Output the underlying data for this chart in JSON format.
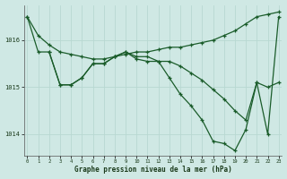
{
  "background_color": "#cfe8e4",
  "grid_color": "#b8d8d2",
  "line_color": "#1a5c2a",
  "marker_color": "#1a5c2a",
  "xlabel": "Graphe pression niveau de la mer (hPa)",
  "ylim": [
    1013.55,
    1016.75
  ],
  "xlim": [
    -0.3,
    23.3
  ],
  "yticks": [
    1014,
    1015,
    1016
  ],
  "xticks": [
    0,
    1,
    2,
    3,
    4,
    5,
    6,
    7,
    8,
    9,
    10,
    11,
    12,
    13,
    14,
    15,
    16,
    17,
    18,
    19,
    20,
    21,
    22,
    23
  ],
  "series": [
    {
      "x": [
        0,
        1,
        2,
        3,
        4,
        5,
        6,
        7,
        8,
        9,
        10,
        11,
        12,
        13,
        14,
        15,
        16,
        17,
        18,
        19,
        20,
        21,
        22,
        23
      ],
      "y": [
        1016.5,
        1016.1,
        1015.9,
        1015.75,
        1015.7,
        1015.65,
        1015.6,
        1015.6,
        1015.65,
        1015.7,
        1015.75,
        1015.75,
        1015.8,
        1015.85,
        1015.85,
        1015.9,
        1015.95,
        1016.0,
        1016.1,
        1016.2,
        1016.35,
        1016.5,
        1016.55,
        1016.6
      ]
    },
    {
      "x": [
        2,
        3,
        4,
        5,
        6,
        7,
        8,
        9,
        10,
        11,
        12,
        13,
        14,
        15,
        16,
        17,
        18,
        19,
        20,
        21,
        22,
        23
      ],
      "y": [
        1015.75,
        1015.05,
        1015.05,
        1015.2,
        1015.5,
        1015.5,
        1015.65,
        1015.75,
        1015.65,
        1015.65,
        1015.55,
        1015.55,
        1015.45,
        1015.3,
        1015.15,
        1014.95,
        1014.75,
        1014.5,
        1014.3,
        1015.1,
        1015.0,
        1015.1
      ]
    },
    {
      "x": [
        0,
        1,
        2,
        3,
        4,
        5,
        6,
        7,
        8,
        9,
        10,
        11,
        12,
        13,
        14,
        15,
        16,
        17,
        18,
        19,
        20,
        21,
        22,
        23
      ],
      "y": [
        1016.5,
        1015.75,
        1015.75,
        1015.05,
        1015.05,
        1015.2,
        1015.5,
        1015.5,
        1015.65,
        1015.75,
        1015.6,
        1015.55,
        1015.55,
        1015.2,
        1014.85,
        1014.6,
        1014.3,
        1013.85,
        1013.8,
        1013.65,
        1014.1,
        1015.1,
        1014.0,
        1016.5
      ]
    }
  ]
}
